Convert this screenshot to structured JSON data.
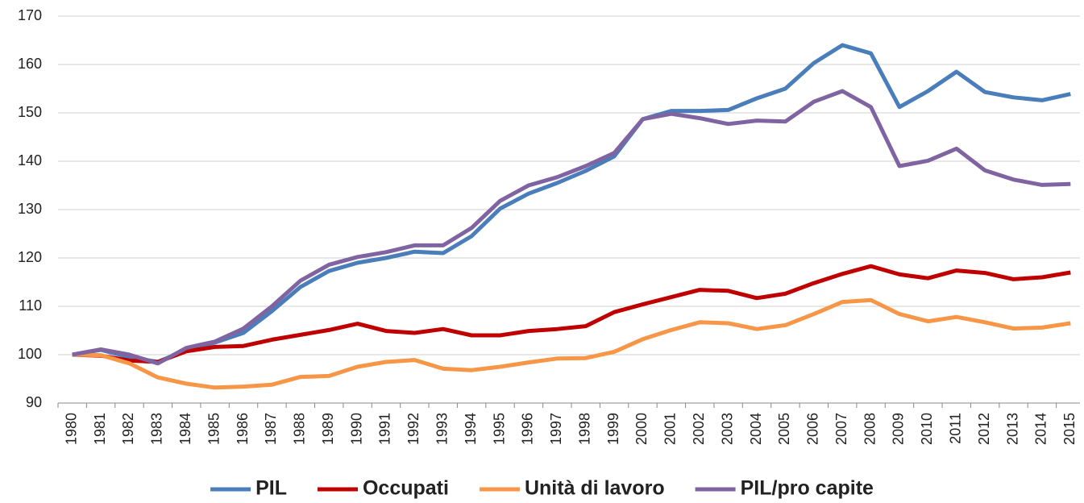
{
  "chart_data": {
    "type": "line",
    "categories": [
      "1980",
      "1981",
      "1982",
      "1983",
      "1984",
      "1985",
      "1986",
      "1987",
      "1988",
      "1989",
      "1990",
      "1991",
      "1992",
      "1993",
      "1994",
      "1995",
      "1996",
      "1997",
      "1998",
      "1999",
      "2000",
      "2001",
      "2002",
      "2003",
      "2004",
      "2005",
      "2006",
      "2007",
      "2008",
      "2009",
      "2010",
      "2011",
      "2012",
      "2013",
      "2014",
      "2015"
    ],
    "series": [
      {
        "name": "PIL",
        "color": "#4a7ebb",
        "values": [
          100,
          101,
          99.5,
          98.5,
          101,
          102.5,
          104.5,
          109,
          114,
          117.3,
          119,
          120,
          121.3,
          121,
          124.5,
          130.2,
          133.3,
          135.5,
          138,
          141,
          148.7,
          150.4,
          150.4,
          150.6,
          153,
          155,
          160.3,
          164,
          162.3,
          151.2,
          154.5,
          158.5,
          154.3,
          153.2,
          152.6,
          153.9
        ]
      },
      {
        "name": "Occupati",
        "color": "#c00000",
        "values": [
          100,
          99.8,
          98.8,
          98.5,
          100.7,
          101.6,
          101.8,
          103.1,
          104.1,
          105.1,
          106.4,
          104.9,
          104.5,
          105.3,
          104,
          104,
          104.9,
          105.3,
          105.9,
          108.8,
          110.4,
          111.9,
          113.4,
          113.2,
          111.7,
          112.6,
          114.8,
          116.7,
          118.3,
          116.6,
          115.8,
          117.4,
          116.9,
          115.6,
          116,
          117
        ]
      },
      {
        "name": "Unità di lavoro",
        "color": "#f79646",
        "values": [
          100,
          99.9,
          98.2,
          95.3,
          94,
          93.2,
          93.4,
          93.8,
          95.4,
          95.6,
          97.5,
          98.5,
          98.9,
          97.1,
          96.8,
          97.5,
          98.4,
          99.2,
          99.3,
          100.6,
          103.2,
          105.1,
          106.7,
          106.5,
          105.3,
          106.1,
          108.4,
          110.9,
          111.3,
          108.4,
          106.9,
          107.8,
          106.7,
          105.4,
          105.6,
          106.5
        ]
      },
      {
        "name": "PIL/pro capite",
        "color": "#8064a2",
        "values": [
          100,
          101.1,
          100,
          98.2,
          101.4,
          102.7,
          105.4,
          110,
          115.3,
          118.6,
          120.2,
          121.2,
          122.6,
          122.6,
          126.2,
          131.8,
          135,
          136.7,
          139,
          141.7,
          148.7,
          149.8,
          148.9,
          147.7,
          148.4,
          148.2,
          152.3,
          154.5,
          151.2,
          139,
          140.1,
          142.6,
          138.1,
          136.2,
          135.1,
          135.3
        ]
      }
    ],
    "ylim": [
      90,
      170
    ],
    "yticks": [
      90,
      100,
      110,
      120,
      130,
      140,
      150,
      160,
      170
    ],
    "grid": true,
    "legend": "bottom"
  }
}
